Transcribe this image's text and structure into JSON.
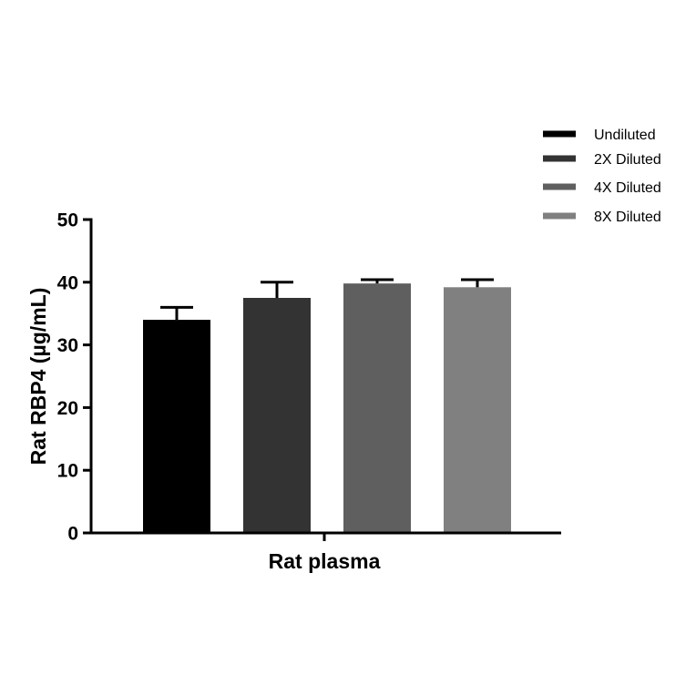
{
  "chart_data": {
    "type": "bar",
    "title": "",
    "xlabel": "Rat plasma",
    "ylabel": "Rat RBP4 (µg/mL)",
    "ylim": [
      0,
      50
    ],
    "yticks": [
      "0",
      "10",
      "20",
      "30",
      "40",
      "50"
    ],
    "ytick_values": [
      0,
      10,
      20,
      30,
      40,
      50
    ],
    "categories": [
      "Rat plasma"
    ],
    "series": [
      {
        "name": "Undiluted",
        "values": [
          34.0
        ],
        "error": [
          2.0
        ],
        "color": "#000000"
      },
      {
        "name": "2X Diluted",
        "values": [
          37.5
        ],
        "error": [
          2.5
        ],
        "color": "#333333"
      },
      {
        "name": "4X Diluted",
        "values": [
          39.8
        ],
        "error": [
          0.6
        ],
        "color": "#5f5f5f"
      },
      {
        "name": "8X Diluted",
        "values": [
          39.2
        ],
        "error": [
          1.2
        ],
        "color": "#808080"
      }
    ],
    "legend_position": "top-right",
    "grid": false
  }
}
